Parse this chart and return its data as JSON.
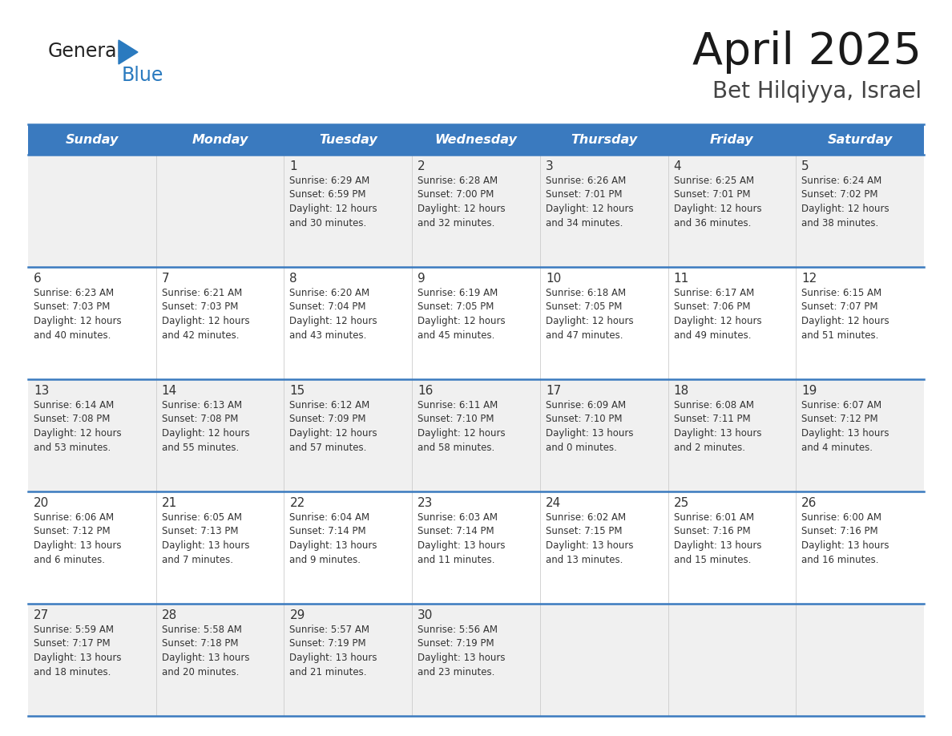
{
  "title": "April 2025",
  "subtitle": "Bet Hilqiyya, Israel",
  "header_bg": "#3a7abf",
  "header_text_color": "#ffffff",
  "days_of_week": [
    "Sunday",
    "Monday",
    "Tuesday",
    "Wednesday",
    "Thursday",
    "Friday",
    "Saturday"
  ],
  "row_bg_odd": "#f0f0f0",
  "row_bg_even": "#ffffff",
  "cell_text_color": "#333333",
  "divider_color": "#3a7abf",
  "logo_black": "#222222",
  "logo_blue": "#2a7abf",
  "calendar": [
    [
      {
        "day": null,
        "info": null
      },
      {
        "day": null,
        "info": null
      },
      {
        "day": 1,
        "info": "Sunrise: 6:29 AM\nSunset: 6:59 PM\nDaylight: 12 hours\nand 30 minutes."
      },
      {
        "day": 2,
        "info": "Sunrise: 6:28 AM\nSunset: 7:00 PM\nDaylight: 12 hours\nand 32 minutes."
      },
      {
        "day": 3,
        "info": "Sunrise: 6:26 AM\nSunset: 7:01 PM\nDaylight: 12 hours\nand 34 minutes."
      },
      {
        "day": 4,
        "info": "Sunrise: 6:25 AM\nSunset: 7:01 PM\nDaylight: 12 hours\nand 36 minutes."
      },
      {
        "day": 5,
        "info": "Sunrise: 6:24 AM\nSunset: 7:02 PM\nDaylight: 12 hours\nand 38 minutes."
      }
    ],
    [
      {
        "day": 6,
        "info": "Sunrise: 6:23 AM\nSunset: 7:03 PM\nDaylight: 12 hours\nand 40 minutes."
      },
      {
        "day": 7,
        "info": "Sunrise: 6:21 AM\nSunset: 7:03 PM\nDaylight: 12 hours\nand 42 minutes."
      },
      {
        "day": 8,
        "info": "Sunrise: 6:20 AM\nSunset: 7:04 PM\nDaylight: 12 hours\nand 43 minutes."
      },
      {
        "day": 9,
        "info": "Sunrise: 6:19 AM\nSunset: 7:05 PM\nDaylight: 12 hours\nand 45 minutes."
      },
      {
        "day": 10,
        "info": "Sunrise: 6:18 AM\nSunset: 7:05 PM\nDaylight: 12 hours\nand 47 minutes."
      },
      {
        "day": 11,
        "info": "Sunrise: 6:17 AM\nSunset: 7:06 PM\nDaylight: 12 hours\nand 49 minutes."
      },
      {
        "day": 12,
        "info": "Sunrise: 6:15 AM\nSunset: 7:07 PM\nDaylight: 12 hours\nand 51 minutes."
      }
    ],
    [
      {
        "day": 13,
        "info": "Sunrise: 6:14 AM\nSunset: 7:08 PM\nDaylight: 12 hours\nand 53 minutes."
      },
      {
        "day": 14,
        "info": "Sunrise: 6:13 AM\nSunset: 7:08 PM\nDaylight: 12 hours\nand 55 minutes."
      },
      {
        "day": 15,
        "info": "Sunrise: 6:12 AM\nSunset: 7:09 PM\nDaylight: 12 hours\nand 57 minutes."
      },
      {
        "day": 16,
        "info": "Sunrise: 6:11 AM\nSunset: 7:10 PM\nDaylight: 12 hours\nand 58 minutes."
      },
      {
        "day": 17,
        "info": "Sunrise: 6:09 AM\nSunset: 7:10 PM\nDaylight: 13 hours\nand 0 minutes."
      },
      {
        "day": 18,
        "info": "Sunrise: 6:08 AM\nSunset: 7:11 PM\nDaylight: 13 hours\nand 2 minutes."
      },
      {
        "day": 19,
        "info": "Sunrise: 6:07 AM\nSunset: 7:12 PM\nDaylight: 13 hours\nand 4 minutes."
      }
    ],
    [
      {
        "day": 20,
        "info": "Sunrise: 6:06 AM\nSunset: 7:12 PM\nDaylight: 13 hours\nand 6 minutes."
      },
      {
        "day": 21,
        "info": "Sunrise: 6:05 AM\nSunset: 7:13 PM\nDaylight: 13 hours\nand 7 minutes."
      },
      {
        "day": 22,
        "info": "Sunrise: 6:04 AM\nSunset: 7:14 PM\nDaylight: 13 hours\nand 9 minutes."
      },
      {
        "day": 23,
        "info": "Sunrise: 6:03 AM\nSunset: 7:14 PM\nDaylight: 13 hours\nand 11 minutes."
      },
      {
        "day": 24,
        "info": "Sunrise: 6:02 AM\nSunset: 7:15 PM\nDaylight: 13 hours\nand 13 minutes."
      },
      {
        "day": 25,
        "info": "Sunrise: 6:01 AM\nSunset: 7:16 PM\nDaylight: 13 hours\nand 15 minutes."
      },
      {
        "day": 26,
        "info": "Sunrise: 6:00 AM\nSunset: 7:16 PM\nDaylight: 13 hours\nand 16 minutes."
      }
    ],
    [
      {
        "day": 27,
        "info": "Sunrise: 5:59 AM\nSunset: 7:17 PM\nDaylight: 13 hours\nand 18 minutes."
      },
      {
        "day": 28,
        "info": "Sunrise: 5:58 AM\nSunset: 7:18 PM\nDaylight: 13 hours\nand 20 minutes."
      },
      {
        "day": 29,
        "info": "Sunrise: 5:57 AM\nSunset: 7:19 PM\nDaylight: 13 hours\nand 21 minutes."
      },
      {
        "day": 30,
        "info": "Sunrise: 5:56 AM\nSunset: 7:19 PM\nDaylight: 13 hours\nand 23 minutes."
      },
      {
        "day": null,
        "info": null
      },
      {
        "day": null,
        "info": null
      },
      {
        "day": null,
        "info": null
      }
    ]
  ]
}
